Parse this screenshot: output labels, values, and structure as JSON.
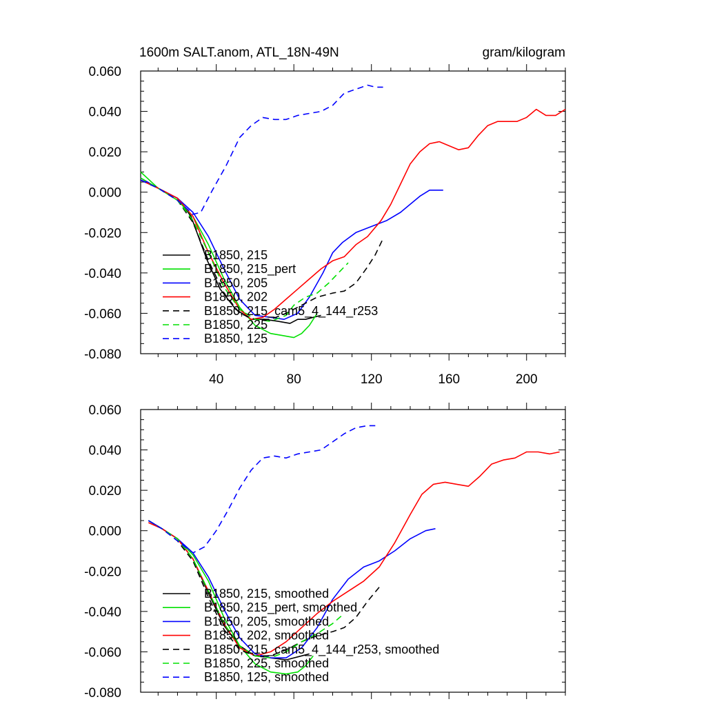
{
  "figure": {
    "title": "1600m SALT.anom, ATL_18N-49N",
    "units": "gram/kilogram"
  },
  "chart_data": [
    {
      "type": "line",
      "title": "1600m SALT.anom, ATL_18N-49N",
      "right_title": "gram/kilogram",
      "xlim": [
        1,
        220
      ],
      "ylim": [
        -0.08,
        0.06
      ],
      "xticks": [
        40,
        80,
        120,
        160,
        200
      ],
      "xtick_labels": [
        "40",
        "80",
        "120",
        "160",
        "200"
      ],
      "yticks": [
        0.06,
        0.04,
        0.02,
        0.0,
        -0.02,
        -0.04,
        -0.06,
        -0.08
      ],
      "ytick_labels": [
        "0.060",
        "0.040",
        "0.020",
        "0.000",
        "-0.020",
        "-0.040",
        "-0.060",
        "-0.080"
      ],
      "legend_position": "bottom-left",
      "series": [
        {
          "name": "B1850, 215",
          "color": "#000000",
          "dash": "solid",
          "x": [
            1,
            10,
            20,
            27,
            35,
            42,
            50,
            58,
            65,
            72,
            78,
            82,
            86,
            90,
            94
          ],
          "y": [
            0.006,
            0.002,
            -0.003,
            -0.012,
            -0.033,
            -0.048,
            -0.058,
            -0.063,
            -0.063,
            -0.064,
            -0.065,
            -0.063,
            -0.063,
            -0.062,
            -0.061
          ]
        },
        {
          "name": "B1850, 215_pert",
          "color": "#00e000",
          "dash": "solid",
          "x": [
            1,
            10,
            20,
            28,
            36,
            44,
            52,
            60,
            68,
            74,
            80,
            84,
            88,
            92
          ],
          "y": [
            0.01,
            0.002,
            -0.004,
            -0.012,
            -0.026,
            -0.043,
            -0.057,
            -0.066,
            -0.07,
            -0.071,
            -0.072,
            -0.07,
            -0.066,
            -0.06
          ]
        },
        {
          "name": "B1850, 205",
          "color": "#0000ff",
          "dash": "solid",
          "x": [
            1,
            10,
            20,
            28,
            36,
            44,
            52,
            60,
            68,
            75,
            82,
            88,
            95,
            100,
            105,
            112,
            120,
            128,
            135,
            140,
            145,
            150,
            153,
            157
          ],
          "y": [
            0.007,
            0.002,
            -0.003,
            -0.01,
            -0.022,
            -0.038,
            -0.053,
            -0.061,
            -0.062,
            -0.063,
            -0.06,
            -0.052,
            -0.04,
            -0.03,
            -0.025,
            -0.02,
            -0.017,
            -0.014,
            -0.01,
            -0.006,
            -0.002,
            0.001,
            0.001,
            0.001
          ]
        },
        {
          "name": "B1850, 202",
          "color": "#ff0000",
          "dash": "solid",
          "x": [
            1,
            10,
            20,
            28,
            36,
            44,
            52,
            58,
            64,
            70,
            76,
            82,
            88,
            94,
            100,
            106,
            112,
            118,
            125,
            130,
            135,
            140,
            145,
            150,
            155,
            160,
            165,
            170,
            175,
            180,
            185,
            190,
            195,
            200,
            205,
            210,
            215,
            220
          ],
          "y": [
            0.006,
            0.002,
            -0.003,
            -0.012,
            -0.03,
            -0.045,
            -0.058,
            -0.063,
            -0.062,
            -0.058,
            -0.053,
            -0.048,
            -0.043,
            -0.038,
            -0.034,
            -0.032,
            -0.026,
            -0.022,
            -0.014,
            -0.006,
            0.004,
            0.014,
            0.02,
            0.024,
            0.025,
            0.023,
            0.021,
            0.022,
            0.028,
            0.033,
            0.035,
            0.035,
            0.035,
            0.037,
            0.041,
            0.038,
            0.038,
            0.041
          ]
        },
        {
          "name": "B1850, 215_cam5_4_144_r253",
          "color": "#000000",
          "dash": "dashed",
          "x": [
            1,
            10,
            20,
            28,
            36,
            44,
            52,
            60,
            68,
            76,
            84,
            92,
            100,
            106,
            112,
            118,
            122,
            126
          ],
          "y": [
            0.006,
            0.002,
            -0.004,
            -0.015,
            -0.034,
            -0.05,
            -0.06,
            -0.063,
            -0.063,
            -0.06,
            -0.056,
            -0.052,
            -0.05,
            -0.049,
            -0.045,
            -0.037,
            -0.031,
            -0.023
          ]
        },
        {
          "name": "B1850, 225",
          "color": "#00e000",
          "dash": "dashed",
          "x": [
            1,
            10,
            20,
            28,
            36,
            44,
            52,
            60,
            68,
            76,
            80,
            86,
            92,
            98,
            104,
            108
          ],
          "y": [
            0.007,
            0.002,
            -0.004,
            -0.014,
            -0.03,
            -0.047,
            -0.058,
            -0.063,
            -0.064,
            -0.061,
            -0.056,
            -0.052,
            -0.05,
            -0.045,
            -0.039,
            -0.035
          ]
        },
        {
          "name": "B1850, 125",
          "color": "#0000ff",
          "dash": "dashed",
          "x": [
            1,
            10,
            20,
            28,
            32,
            38,
            45,
            52,
            58,
            64,
            70,
            76,
            82,
            88,
            94,
            100,
            106,
            112,
            118,
            122,
            126
          ],
          "y": [
            0.006,
            0.002,
            -0.004,
            -0.011,
            -0.01,
            0.001,
            0.013,
            0.027,
            0.033,
            0.037,
            0.036,
            0.036,
            0.038,
            0.039,
            0.04,
            0.043,
            0.049,
            0.051,
            0.053,
            0.052,
            0.052
          ]
        }
      ]
    },
    {
      "type": "line",
      "xlim": [
        1,
        220
      ],
      "ylim": [
        -0.08,
        0.06
      ],
      "xticks": [
        40,
        80,
        120,
        160,
        200
      ],
      "yticks": [
        0.06,
        0.04,
        0.02,
        0.0,
        -0.02,
        -0.04,
        -0.06,
        -0.08
      ],
      "ytick_labels": [
        "0.060",
        "0.040",
        "0.020",
        "0.000",
        "-0.020",
        "-0.040",
        "-0.060",
        "-0.080"
      ],
      "legend_position": "bottom-left",
      "series": [
        {
          "name": "B1850, 215, smoothed",
          "color": "#000000",
          "dash": "solid",
          "x": [
            5,
            12,
            20,
            28,
            36,
            44,
            52,
            60,
            68,
            76,
            84,
            88
          ],
          "y": [
            0.005,
            0.001,
            -0.004,
            -0.014,
            -0.031,
            -0.047,
            -0.057,
            -0.062,
            -0.063,
            -0.064,
            -0.062,
            -0.061
          ]
        },
        {
          "name": "B1850, 215_pert, smoothed",
          "color": "#00e000",
          "dash": "solid",
          "x": [
            5,
            12,
            20,
            28,
            36,
            44,
            52,
            60,
            68,
            76,
            82,
            86,
            90
          ],
          "y": [
            0.005,
            0.001,
            -0.004,
            -0.012,
            -0.025,
            -0.043,
            -0.057,
            -0.066,
            -0.07,
            -0.071,
            -0.07,
            -0.067,
            -0.062
          ]
        },
        {
          "name": "B1850, 205, smoothed",
          "color": "#0000ff",
          "dash": "solid",
          "x": [
            5,
            12,
            20,
            28,
            36,
            44,
            52,
            60,
            68,
            76,
            84,
            92,
            100,
            108,
            116,
            124,
            132,
            140,
            148,
            153
          ],
          "y": [
            0.005,
            0.001,
            -0.004,
            -0.011,
            -0.023,
            -0.039,
            -0.053,
            -0.061,
            -0.063,
            -0.063,
            -0.058,
            -0.048,
            -0.034,
            -0.024,
            -0.018,
            -0.015,
            -0.01,
            -0.004,
            0.0,
            0.001
          ]
        },
        {
          "name": "B1850, 202, smoothed",
          "color": "#ff0000",
          "dash": "solid",
          "x": [
            5,
            12,
            20,
            28,
            36,
            44,
            52,
            60,
            68,
            76,
            84,
            92,
            100,
            108,
            116,
            124,
            132,
            140,
            146,
            152,
            158,
            164,
            170,
            176,
            182,
            188,
            194,
            200,
            206,
            212,
            217
          ],
          "y": [
            0.004,
            0.001,
            -0.004,
            -0.014,
            -0.03,
            -0.046,
            -0.058,
            -0.062,
            -0.06,
            -0.055,
            -0.048,
            -0.041,
            -0.035,
            -0.03,
            -0.025,
            -0.018,
            -0.006,
            0.008,
            0.018,
            0.023,
            0.024,
            0.023,
            0.022,
            0.027,
            0.033,
            0.035,
            0.036,
            0.039,
            0.039,
            0.038,
            0.039
          ]
        },
        {
          "name": "B1850, 215_cam5_4_144_r253, smoothed",
          "color": "#000000",
          "dash": "dashed",
          "x": [
            5,
            12,
            20,
            28,
            36,
            44,
            52,
            60,
            68,
            76,
            84,
            92,
            100,
            106,
            112,
            118,
            124
          ],
          "y": [
            0.005,
            0.001,
            -0.005,
            -0.015,
            -0.033,
            -0.049,
            -0.059,
            -0.062,
            -0.062,
            -0.059,
            -0.055,
            -0.052,
            -0.05,
            -0.048,
            -0.043,
            -0.035,
            -0.028
          ]
        },
        {
          "name": "B1850, 225, smoothed",
          "color": "#00e000",
          "dash": "dashed",
          "x": [
            5,
            12,
            20,
            28,
            36,
            44,
            52,
            60,
            68,
            76,
            84,
            92,
            100,
            106
          ],
          "y": [
            0.005,
            0.001,
            -0.004,
            -0.014,
            -0.03,
            -0.046,
            -0.057,
            -0.062,
            -0.063,
            -0.06,
            -0.055,
            -0.051,
            -0.046,
            -0.041
          ]
        },
        {
          "name": "B1850, 125, smoothed",
          "color": "#0000ff",
          "dash": "dashed",
          "x": [
            5,
            12,
            20,
            28,
            34,
            40,
            46,
            52,
            58,
            64,
            70,
            76,
            82,
            88,
            94,
            100,
            106,
            112,
            118,
            122
          ],
          "y": [
            0.005,
            0.001,
            -0.005,
            -0.011,
            -0.008,
            0.0,
            0.01,
            0.021,
            0.03,
            0.036,
            0.037,
            0.036,
            0.038,
            0.039,
            0.04,
            0.044,
            0.048,
            0.051,
            0.052,
            0.052
          ]
        }
      ]
    }
  ]
}
